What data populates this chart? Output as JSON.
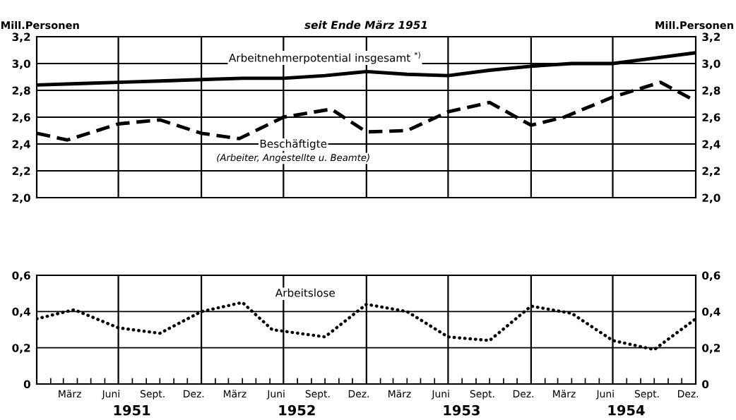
{
  "chart_data": [
    {
      "type": "line",
      "subtitle": "seit Ende März 1951",
      "ylabel": "Mill.Personen",
      "y2label": "Mill.Personen",
      "xlim": [
        "1951-01-01",
        "1955-01-01"
      ],
      "ylim": [
        2.0,
        3.2
      ],
      "y2lim": [
        2.0,
        3.2
      ],
      "yticks": [
        {
          "value": 2.0,
          "label": "2,0"
        },
        {
          "value": 2.2,
          "label": "2,2"
        },
        {
          "value": 2.4,
          "label": "2,4"
        },
        {
          "value": 2.6,
          "label": "2,6"
        },
        {
          "value": 2.8,
          "label": "2,8"
        },
        {
          "value": 3.0,
          "label": "3,0"
        },
        {
          "value": 3.2,
          "label": "3,2"
        }
      ],
      "y2ticks": [
        {
          "value": 2.0,
          "label": "2,0"
        },
        {
          "value": 2.2,
          "label": "2,2"
        },
        {
          "value": 2.4,
          "label": "2,4"
        },
        {
          "value": 2.6,
          "label": "2,6"
        },
        {
          "value": 2.8,
          "label": "2,8"
        },
        {
          "value": 3.0,
          "label": "3,0"
        },
        {
          "value": 3.2,
          "label": "3,2"
        }
      ],
      "tick_labels": "y",
      "grid": "y",
      "legend": false,
      "marker": "none",
      "ref_lines": [
        {
          "axis": "x",
          "value": "1951-07-01"
        },
        {
          "axis": "x",
          "value": "1952-01-01"
        },
        {
          "axis": "x",
          "value": "1952-07-01"
        },
        {
          "axis": "x",
          "value": "1953-01-01"
        },
        {
          "axis": "x",
          "value": "1953-07-01"
        },
        {
          "axis": "x",
          "value": "1954-01-01"
        },
        {
          "axis": "x",
          "value": "1954-07-01"
        }
      ],
      "series": [
        {
          "name": "Arbeitnehmerpotential insgesamt $^{*)}$",
          "color": "#000000",
          "line_style": "solid",
          "x": [
            "1951-01-01",
            "1951-04-01",
            "1951-07-01",
            "1951-10-01",
            "1952-01-01",
            "1952-04-01",
            "1952-07-01",
            "1952-10-01",
            "1953-01-01",
            "1953-04-01",
            "1953-07-01",
            "1953-10-01",
            "1954-01-01",
            "1954-04-01",
            "1954-07-01",
            "1954-10-01",
            "1955-01-01"
          ],
          "values": [
            2.84,
            2.85,
            2.86,
            2.87,
            2.88,
            2.89,
            2.89,
            2.91,
            2.94,
            2.92,
            2.91,
            2.95,
            2.98,
            3.0,
            3.0,
            3.04,
            3.08
          ]
        },
        {
          "name": "Beschäftigte",
          "color": "#000000",
          "line_style": "dashed",
          "x": [
            "1951-01-01",
            "1951-03-10",
            "1951-07-01",
            "1951-10-01",
            "1952-01-01",
            "1952-03-25",
            "1952-07-01",
            "1952-10-15",
            "1953-01-01",
            "1953-04-01",
            "1953-07-01",
            "1953-10-01",
            "1954-01-01",
            "1954-03-15",
            "1954-07-01",
            "1954-10-15",
            "1955-01-01"
          ],
          "values": [
            2.48,
            2.43,
            2.55,
            2.58,
            2.48,
            2.44,
            2.6,
            2.66,
            2.49,
            2.5,
            2.64,
            2.71,
            2.54,
            2.6,
            2.75,
            2.86,
            2.72
          ]
        }
      ],
      "annotations": [
        "(Arbeiter, Angestellte u. Beamte)"
      ]
    },
    {
      "type": "line",
      "xlim": [
        "1951-01-01",
        "1955-01-01"
      ],
      "ylim": [
        0,
        0.6
      ],
      "y2lim": [
        0,
        0.6
      ],
      "yticks": [
        {
          "value": 0,
          "label": "0"
        },
        {
          "value": 0.2,
          "label": "0,2"
        },
        {
          "value": 0.4,
          "label": "0,4"
        },
        {
          "value": 0.6,
          "label": "0,6"
        }
      ],
      "y2ticks": [
        {
          "value": 0,
          "label": "0"
        },
        {
          "value": 0.2,
          "label": "0,2"
        },
        {
          "value": 0.4,
          "label": "0,4"
        },
        {
          "value": 0.6,
          "label": "0,6"
        }
      ],
      "xticks": [
        {
          "value": "1951-03-15",
          "label": "März"
        },
        {
          "value": "1951-06-15",
          "label": "Juni"
        },
        {
          "value": "1951-09-15",
          "label": "Sept."
        },
        {
          "value": "1951-12-15",
          "label": "Dez."
        },
        {
          "value": "1952-03-15",
          "label": "März"
        },
        {
          "value": "1952-06-15",
          "label": "Juni"
        },
        {
          "value": "1952-09-15",
          "label": "Sept."
        },
        {
          "value": "1952-12-15",
          "label": "Dez."
        },
        {
          "value": "1953-03-15",
          "label": "März"
        },
        {
          "value": "1953-06-15",
          "label": "Juni"
        },
        {
          "value": "1953-09-15",
          "label": "Sept."
        },
        {
          "value": "1953-12-15",
          "label": "Dez."
        },
        {
          "value": "1954-03-15",
          "label": "März"
        },
        {
          "value": "1954-06-15",
          "label": "Juni"
        },
        {
          "value": "1954-09-15",
          "label": "Sept."
        },
        {
          "value": "1954-12-15",
          "label": "Dez."
        },
        {
          "value": "1951-02-01",
          "label": null
        },
        {
          "value": "1951-03-01",
          "label": null
        },
        {
          "value": "1951-04-01",
          "label": null
        },
        {
          "value": "1951-05-01",
          "label": null
        },
        {
          "value": "1951-06-01",
          "label": null
        },
        {
          "value": "1951-08-01",
          "label": null
        },
        {
          "value": "1951-09-01",
          "label": null
        },
        {
          "value": "1951-10-01",
          "label": null
        },
        {
          "value": "1951-11-01",
          "label": null
        },
        {
          "value": "1951-12-01",
          "label": null
        },
        {
          "value": "1952-02-01",
          "label": null
        },
        {
          "value": "1952-03-01",
          "label": null
        },
        {
          "value": "1952-04-01",
          "label": null
        },
        {
          "value": "1952-05-01",
          "label": null
        },
        {
          "value": "1952-06-01",
          "label": null
        },
        {
          "value": "1952-08-01",
          "label": null
        },
        {
          "value": "1952-09-01",
          "label": null
        },
        {
          "value": "1952-10-01",
          "label": null
        },
        {
          "value": "1952-11-01",
          "label": null
        },
        {
          "value": "1952-12-01",
          "label": null
        },
        {
          "value": "1953-02-01",
          "label": null
        },
        {
          "value": "1953-03-01",
          "label": null
        },
        {
          "value": "1953-04-01",
          "label": null
        },
        {
          "value": "1953-05-01",
          "label": null
        },
        {
          "value": "1953-06-01",
          "label": null
        },
        {
          "value": "1953-08-01",
          "label": null
        },
        {
          "value": "1953-09-01",
          "label": null
        },
        {
          "value": "1953-10-01",
          "label": null
        },
        {
          "value": "1953-11-01",
          "label": null
        },
        {
          "value": "1953-12-01",
          "label": null
        },
        {
          "value": "1954-02-01",
          "label": null
        },
        {
          "value": "1954-03-01",
          "label": null
        },
        {
          "value": "1954-04-01",
          "label": null
        },
        {
          "value": "1954-05-01",
          "label": null
        },
        {
          "value": "1954-06-01",
          "label": null
        },
        {
          "value": "1954-08-01",
          "label": null
        },
        {
          "value": "1954-09-01",
          "label": null
        },
        {
          "value": "1954-10-01",
          "label": null
        },
        {
          "value": "1954-11-01",
          "label": null
        },
        {
          "value": "1954-12-01",
          "label": null
        }
      ],
      "grid": "y",
      "legend": false,
      "marker": "none",
      "ref_lines": [
        {
          "axis": "x",
          "value": "1951-07-01"
        },
        {
          "axis": "x",
          "value": "1952-01-01"
        },
        {
          "axis": "x",
          "value": "1952-07-01"
        },
        {
          "axis": "x",
          "value": "1953-01-01"
        },
        {
          "axis": "x",
          "value": "1953-07-01"
        },
        {
          "axis": "x",
          "value": "1954-01-01"
        },
        {
          "axis": "x",
          "value": "1954-07-01"
        }
      ],
      "series": [
        {
          "name": "Arbeitslose",
          "color": "#000000",
          "line_style": "dotted",
          "x": [
            "1951-01-01",
            "1951-03-25",
            "1951-07-01",
            "1951-10-01",
            "1952-01-01",
            "1952-04-01",
            "1952-06-06",
            "1952-10-01",
            "1953-01-01",
            "1953-04-01",
            "1953-07-01",
            "1953-10-01",
            "1954-01-01",
            "1954-04-01",
            "1954-07-01",
            "1954-10-01",
            "1955-01-01"
          ],
          "values": [
            0.36,
            0.41,
            0.31,
            0.28,
            0.4,
            0.45,
            0.3,
            0.26,
            0.44,
            0.4,
            0.26,
            0.24,
            0.43,
            0.39,
            0.24,
            0.19,
            0.36
          ]
        }
      ],
      "annotations": [
        "1951",
        "1952",
        "1953",
        "1954"
      ]
    }
  ]
}
